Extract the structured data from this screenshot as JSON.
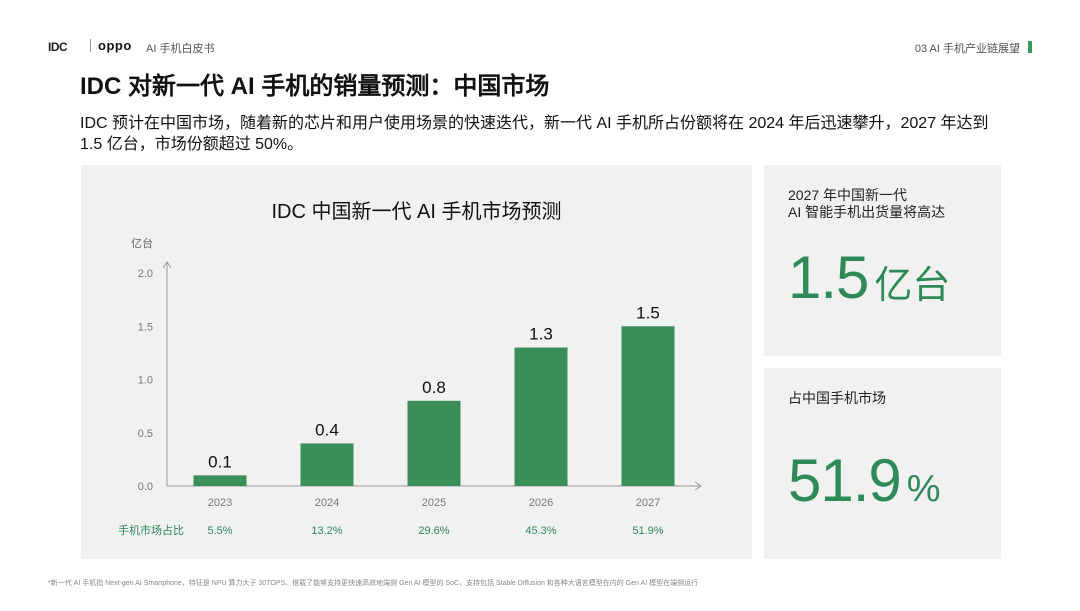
{
  "header": {
    "logo_idc": "IDC",
    "logo_oppo": "oppo",
    "doc_title": "AI 手机白皮书",
    "section": "03 AI 手机产业链展望",
    "accent_color": "#3a9a5c"
  },
  "title": "IDC 对新一代 AI 手机的销量预测：中国市场",
  "description": "IDC 预计在中国市场，随着新的芯片和用户使用场景的快速迭代，新一代 AI 手机所占份额将在 2024 年后迅速攀升，2027 年达到 1.5 亿台，市场份额超过 50%。",
  "chart_data": {
    "type": "bar",
    "title": "IDC 中国新一代 AI 手机市场预测",
    "ylabel": "亿台",
    "categories": [
      "2023",
      "2024",
      "2025",
      "2026",
      "2027"
    ],
    "values": [
      0.1,
      0.4,
      0.8,
      1.3,
      1.5
    ],
    "value_labels": [
      "0.1",
      "0.4",
      "0.8",
      "1.3",
      "1.5"
    ],
    "ylim": [
      0,
      2.0
    ],
    "yticks": [
      "0.0",
      "0.5",
      "1.0",
      "1.5",
      "2.0"
    ],
    "share_row_label": "手机市场占比",
    "share_values": [
      "5.5%",
      "13.2%",
      "29.6%",
      "45.3%",
      "51.9%"
    ],
    "bar_color": "#3a8f58",
    "grid": false
  },
  "cards": {
    "shipments": {
      "label": "2027 年中国新一代\nAI 智能手机出货量将高达",
      "value": "1.5",
      "unit": "亿台"
    },
    "share": {
      "label": "占中国手机市场",
      "value": "51.9",
      "unit": "%"
    },
    "value_color": "#2e8b57"
  },
  "footnote": "*新一代 AI 手机指 Next-gen AI Smartphone，特征是 NPU 算力大于 30TOPS、搭载了能够支持更快速高效地端侧 Gen AI 模型的 SoC，支持包括 Stable Diffusion 和各种大语言模型在内的 Gen AI 模型在端侧运行"
}
